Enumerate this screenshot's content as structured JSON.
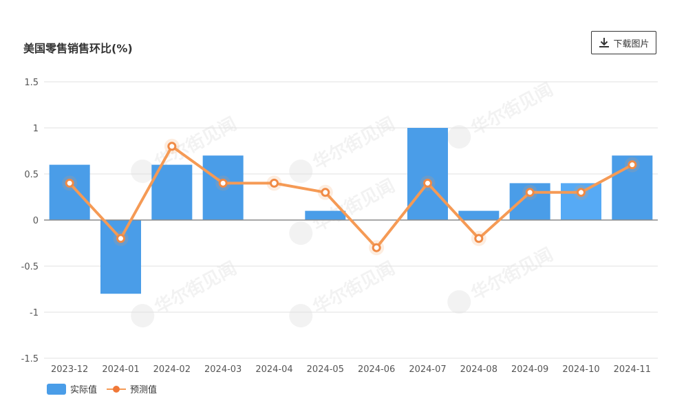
{
  "header": {
    "title": "美国零售销售环比(%)",
    "download_label": "下载图片"
  },
  "watermark_text": "华尔街见闻",
  "colors": {
    "bar": "#4a9de8",
    "bar_highlight": "#56aaf5",
    "line": "#f59a55",
    "point_fill": "#ffffff",
    "point_stroke": "#f08a45",
    "grid": "#e0e0e0",
    "zero_axis": "#8a8a8a",
    "tick_text": "#555555"
  },
  "chart_data": {
    "type": "bar",
    "title": "美国零售销售环比(%)",
    "categories": [
      "2023-12",
      "2024-01",
      "2024-02",
      "2024-03",
      "2024-04",
      "2024-05",
      "2024-06",
      "2024-07",
      "2024-08",
      "2024-09",
      "2024-10",
      "2024-11"
    ],
    "series": [
      {
        "name": "实际值",
        "type": "bar",
        "values": [
          0.6,
          -0.8,
          0.6,
          0.7,
          0,
          0.1,
          0,
          1.0,
          0.1,
          0.4,
          0.4,
          0.7
        ]
      },
      {
        "name": "预测值",
        "type": "line",
        "values": [
          0.4,
          -0.2,
          0.8,
          0.4,
          0.4,
          0.3,
          -0.3,
          0.4,
          -0.2,
          0.3,
          0.3,
          0.6
        ]
      }
    ],
    "yticks": [
      "1.5",
      "1",
      "0.5",
      "0",
      "-0.5",
      "-1",
      "-1.5"
    ],
    "ylim": [
      -1.5,
      1.5
    ],
    "grid": true,
    "legend_position": "bottom-left"
  }
}
